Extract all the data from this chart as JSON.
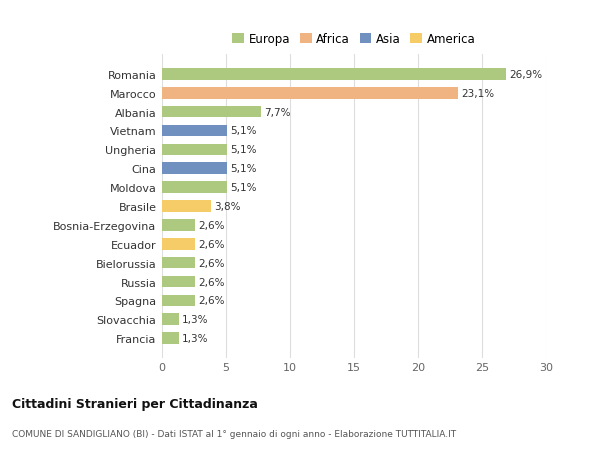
{
  "categories": [
    "Francia",
    "Slovacchia",
    "Spagna",
    "Russia",
    "Bielorussia",
    "Ecuador",
    "Bosnia-Erzegovina",
    "Brasile",
    "Moldova",
    "Cina",
    "Ungheria",
    "Vietnam",
    "Albania",
    "Marocco",
    "Romania"
  ],
  "values": [
    1.3,
    1.3,
    2.6,
    2.6,
    2.6,
    2.6,
    2.6,
    3.8,
    5.1,
    5.1,
    5.1,
    5.1,
    7.7,
    23.1,
    26.9
  ],
  "labels": [
    "1,3%",
    "1,3%",
    "2,6%",
    "2,6%",
    "2,6%",
    "2,6%",
    "2,6%",
    "3,8%",
    "5,1%",
    "5,1%",
    "5,1%",
    "5,1%",
    "7,7%",
    "23,1%",
    "26,9%"
  ],
  "continents": [
    "Europa",
    "Europa",
    "Europa",
    "Europa",
    "Europa",
    "America",
    "Europa",
    "America",
    "Europa",
    "Asia",
    "Europa",
    "Asia",
    "Europa",
    "Africa",
    "Europa"
  ],
  "colors": {
    "Europa": "#adc980",
    "Africa": "#f0b482",
    "Asia": "#7090c0",
    "America": "#f5cc68"
  },
  "xlim": [
    0,
    30
  ],
  "xticks": [
    0,
    5,
    10,
    15,
    20,
    25,
    30
  ],
  "background_color": "#ffffff",
  "grid_color": "#dddddd",
  "title": "Cittadini Stranieri per Cittadinanza",
  "subtitle": "COMUNE DI SANDIGLIANO (BI) - Dati ISTAT al 1° gennaio di ogni anno - Elaborazione TUTTITALIA.IT",
  "legend_order": [
    "Europa",
    "Africa",
    "Asia",
    "America"
  ]
}
